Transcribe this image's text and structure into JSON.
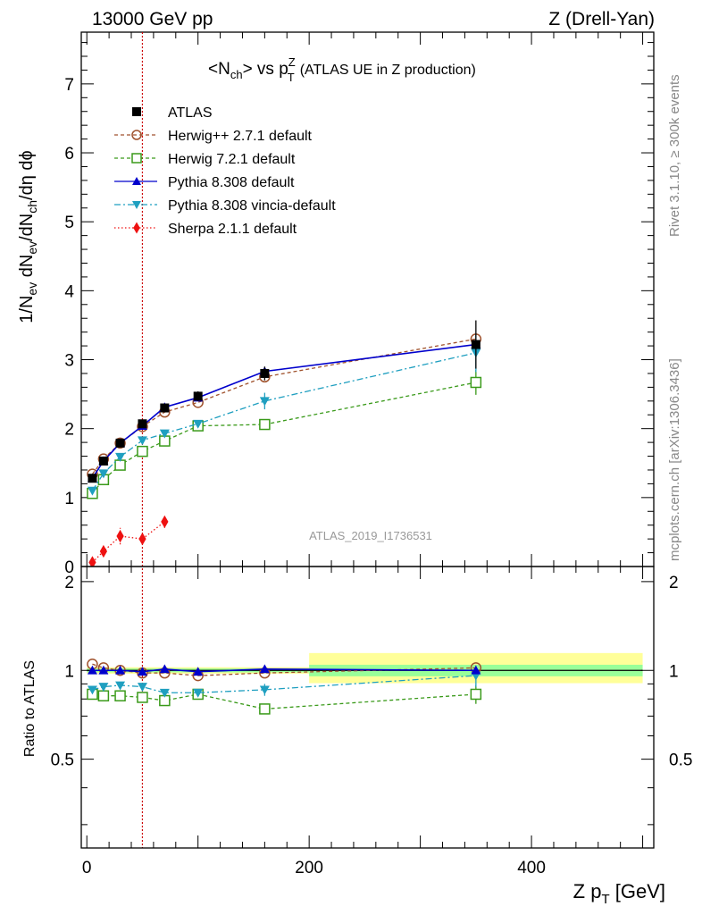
{
  "header": {
    "left": "13000 GeV pp",
    "right": "Z (Drell-Yan)"
  },
  "side_text": {
    "rivet": "Rivet 3.1.10, ≥ 300k events",
    "mcplots": "mcplots.cern.ch [arXiv:1306.3436]"
  },
  "analysis_id": "ATLAS_2019_I1736531",
  "colors": {
    "ATLAS": "#000000",
    "herwigpp": "#a0522d",
    "herwig7": "#3a9a1a",
    "pythia": "#0000cc",
    "vincia": "#1f9fc0",
    "sherpa": "#ee1111",
    "band_outer": "#ffff99",
    "band_inner": "#99ff99",
    "vline": "#cc0000"
  },
  "chart_data": [
    {
      "panel": "main",
      "type": "line",
      "title": "<N_ch> vs p_T^Z (ATLAS UE in Z production)",
      "title_parts": {
        "main": "<N",
        "sub1": "ch",
        "mid": "> vs p",
        "sup": "Z",
        "sub2": "T",
        "tail": "(ATLAS UE in Z production)"
      },
      "ylabel": "1/N_ev dN_ev/dN_ch/dη dϕ",
      "ylabel_parts": {
        "a": "1/N",
        "b": "ev",
        "c": " dN",
        "d": "ev",
        "e": "/dN",
        "f": "ch",
        "g": "/dη dϕ"
      },
      "xlim": [
        -5,
        510
      ],
      "ylim": [
        0,
        7.75
      ],
      "yticks": [
        0,
        1,
        2,
        3,
        4,
        5,
        6,
        7
      ],
      "vertical_line_x": 50,
      "legend_position": "top-left",
      "series": [
        {
          "key": "ATLAS",
          "name": "ATLAS",
          "marker": "square-filled",
          "line": "none",
          "x": [
            5,
            15,
            30,
            50,
            70,
            100,
            160,
            350
          ],
          "y": [
            1.28,
            1.53,
            1.79,
            2.07,
            2.3,
            2.47,
            2.8,
            3.22
          ],
          "yerr": [
            0.03,
            0.04,
            0.04,
            0.05,
            0.06,
            0.07,
            0.1,
            0.35
          ]
        },
        {
          "key": "herwigpp",
          "name": "Herwig++ 2.7.1 default",
          "marker": "circle-open",
          "line": "dashed",
          "x": [
            5,
            15,
            30,
            50,
            70,
            100,
            160,
            350
          ],
          "y": [
            1.34,
            1.56,
            1.79,
            2.03,
            2.24,
            2.38,
            2.75,
            3.3
          ],
          "yerr": [
            0,
            0,
            0,
            0,
            0,
            0,
            0,
            0
          ]
        },
        {
          "key": "herwig7",
          "name": "Herwig 7.2.1 default",
          "marker": "square-open",
          "line": "dashed",
          "x": [
            5,
            15,
            30,
            50,
            70,
            100,
            160,
            350
          ],
          "y": [
            1.06,
            1.26,
            1.47,
            1.67,
            1.82,
            2.04,
            2.06,
            2.67
          ],
          "yerr": [
            0,
            0,
            0,
            0,
            0,
            0,
            0,
            0.18
          ]
        },
        {
          "key": "pythia",
          "name": "Pythia 8.308 default",
          "marker": "triangle-up",
          "line": "solid",
          "x": [
            5,
            15,
            30,
            50,
            70,
            100,
            160,
            350
          ],
          "y": [
            1.28,
            1.53,
            1.79,
            2.04,
            2.31,
            2.45,
            2.83,
            3.22
          ],
          "yerr": [
            0,
            0,
            0,
            0,
            0,
            0,
            0,
            0
          ]
        },
        {
          "key": "vincia",
          "name": "Pythia 8.308 vincia-default",
          "marker": "triangle-down",
          "line": "dashdot",
          "x": [
            5,
            15,
            30,
            50,
            70,
            100,
            160,
            350
          ],
          "y": [
            1.1,
            1.35,
            1.59,
            1.83,
            1.93,
            2.07,
            2.4,
            3.1
          ],
          "yerr": [
            0,
            0,
            0,
            0,
            0,
            0,
            0.12,
            0.28
          ]
        },
        {
          "key": "sherpa",
          "name": "Sherpa 2.1.1 default",
          "marker": "diamond",
          "line": "dotted",
          "x": [
            5,
            15,
            30,
            50,
            70
          ],
          "y": [
            0.06,
            0.22,
            0.44,
            0.4,
            0.65
          ],
          "yerr": [
            0.02,
            0.05,
            0.12,
            0.06,
            0.09
          ]
        }
      ]
    },
    {
      "panel": "ratio",
      "type": "line",
      "ylabel": "Ratio to ATLAS",
      "xlabel": "Z p_T [GeV]",
      "xlabel_parts": {
        "a": "Z p",
        "b": "T",
        "c": " [GeV]"
      },
      "xlim": [
        -5,
        510
      ],
      "ylim": [
        0.25,
        2.25
      ],
      "xticks": [
        0,
        200,
        400
      ],
      "yticks": [
        0.5,
        1,
        2
      ],
      "bands": [
        {
          "x0": 0,
          "x1": 200,
          "outer": [
            0.975,
            1.025
          ],
          "inner": [
            0.985,
            1.015
          ]
        },
        {
          "x0": 200,
          "x1": 500,
          "outer": [
            0.905,
            1.145
          ],
          "inner": [
            0.955,
            1.045
          ]
        }
      ],
      "series": [
        {
          "key": "herwigpp",
          "x": [
            5,
            15,
            30,
            50,
            70,
            100,
            160,
            350
          ],
          "y": [
            1.05,
            1.02,
            1.0,
            0.98,
            0.98,
            0.96,
            0.98,
            1.02
          ],
          "yerr": [
            0,
            0,
            0,
            0,
            0,
            0,
            0,
            0
          ]
        },
        {
          "key": "herwig7",
          "x": [
            5,
            15,
            30,
            50,
            70,
            100,
            160,
            350
          ],
          "y": [
            0.83,
            0.82,
            0.82,
            0.81,
            0.79,
            0.83,
            0.74,
            0.83
          ],
          "yerr": [
            0,
            0,
            0,
            0,
            0,
            0,
            0,
            0.06
          ]
        },
        {
          "key": "pythia",
          "x": [
            5,
            15,
            30,
            50,
            70,
            100,
            160,
            350
          ],
          "y": [
            1.0,
            1.0,
            1.0,
            0.99,
            1.01,
            0.99,
            1.01,
            1.0
          ],
          "yerr": [
            0,
            0,
            0,
            0,
            0,
            0,
            0,
            0
          ]
        },
        {
          "key": "vincia",
          "x": [
            5,
            15,
            30,
            50,
            70,
            100,
            160,
            350
          ],
          "y": [
            0.86,
            0.88,
            0.89,
            0.88,
            0.84,
            0.84,
            0.86,
            0.96
          ],
          "yerr": [
            0,
            0,
            0,
            0,
            0,
            0,
            0.04,
            0.08
          ]
        }
      ]
    }
  ]
}
